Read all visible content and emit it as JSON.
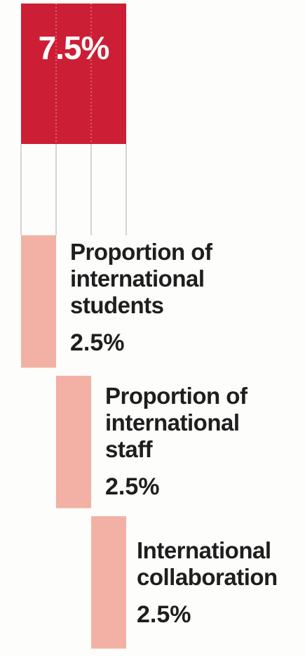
{
  "chart_data": {
    "type": "bar",
    "title": "",
    "total": {
      "value": 7.5,
      "label": "7.5%",
      "color": "#cc1e35"
    },
    "segments": [
      {
        "name_lines": [
          "Proportion of",
          "international",
          "students"
        ],
        "value": 2.5,
        "label": "2.5%"
      },
      {
        "name_lines": [
          "Proportion of",
          "international",
          "staff"
        ],
        "value": 2.5,
        "label": "2.5%"
      },
      {
        "name_lines": [
          "International",
          "collaboration"
        ],
        "value": 2.5,
        "label": "2.5%"
      }
    ],
    "segment_color": "#f2b1a4",
    "guide_line_color": "#d4d4d4"
  }
}
